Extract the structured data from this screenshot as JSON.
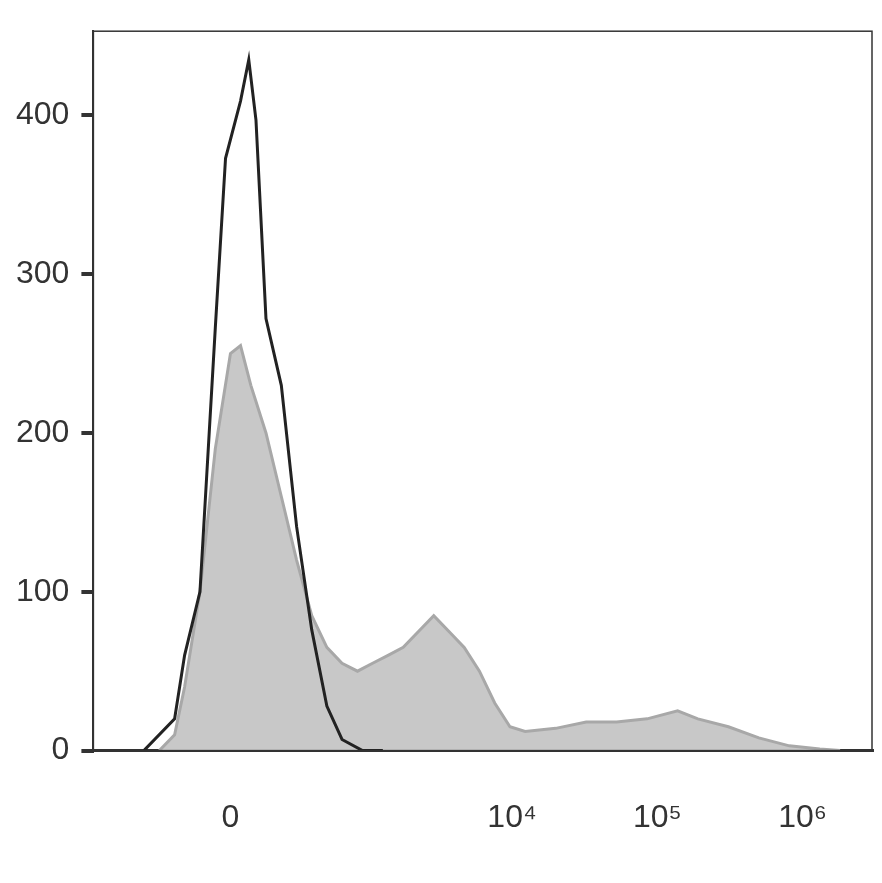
{
  "chart_data": {
    "type": "line",
    "log": "x",
    "grid": false,
    "xlim": [
      -1000,
      3000000
    ],
    "xticks": [
      0,
      {
        "value": 10000,
        "label": "10⁴"
      },
      {
        "value": 100000,
        "label": "10⁵"
      },
      {
        "value": 1000000,
        "label": "10⁶"
      }
    ],
    "ylim": [
      0,
      453
    ],
    "yticks": [
      0,
      100,
      200,
      300,
      400
    ],
    "series": [
      {
        "type": "area",
        "color": "#c8c8c8",
        "x": [
          -319,
          -232,
          -183,
          -116,
          -56,
          0,
          37,
          76,
          137,
          207,
          289,
          387,
          507,
          657,
          849,
          1086,
          1393,
          1777,
          2266,
          2890,
          3680,
          4687,
          5967,
          7600,
          9679,
          12312,
          19980,
          32390,
          52440,
          85050,
          137900,
          190100,
          308400,
          499600,
          809700,
          1312000,
          1809000
        ],
        "values": [
          0,
          10,
          40,
          100,
          190,
          250,
          255,
          230,
          200,
          160,
          120,
          85,
          65,
          55,
          50,
          55,
          60,
          65,
          75,
          85,
          75,
          65,
          50,
          30,
          15,
          12,
          14,
          18,
          18,
          20,
          25,
          20,
          15,
          8,
          3,
          1,
          0
        ]
      },
      {
        "type": "line",
        "color": "#222222",
        "x": [
          -426,
          -232,
          -183,
          -116,
          -56,
          -18,
          37,
          68,
          96,
          137,
          207,
          289,
          387,
          507,
          657,
          922,
          1282
        ],
        "values": [
          0,
          20,
          60,
          100,
          266,
          373,
          409,
          435,
          397,
          272,
          230,
          141,
          76,
          28,
          7,
          0,
          0
        ]
      }
    ]
  }
}
